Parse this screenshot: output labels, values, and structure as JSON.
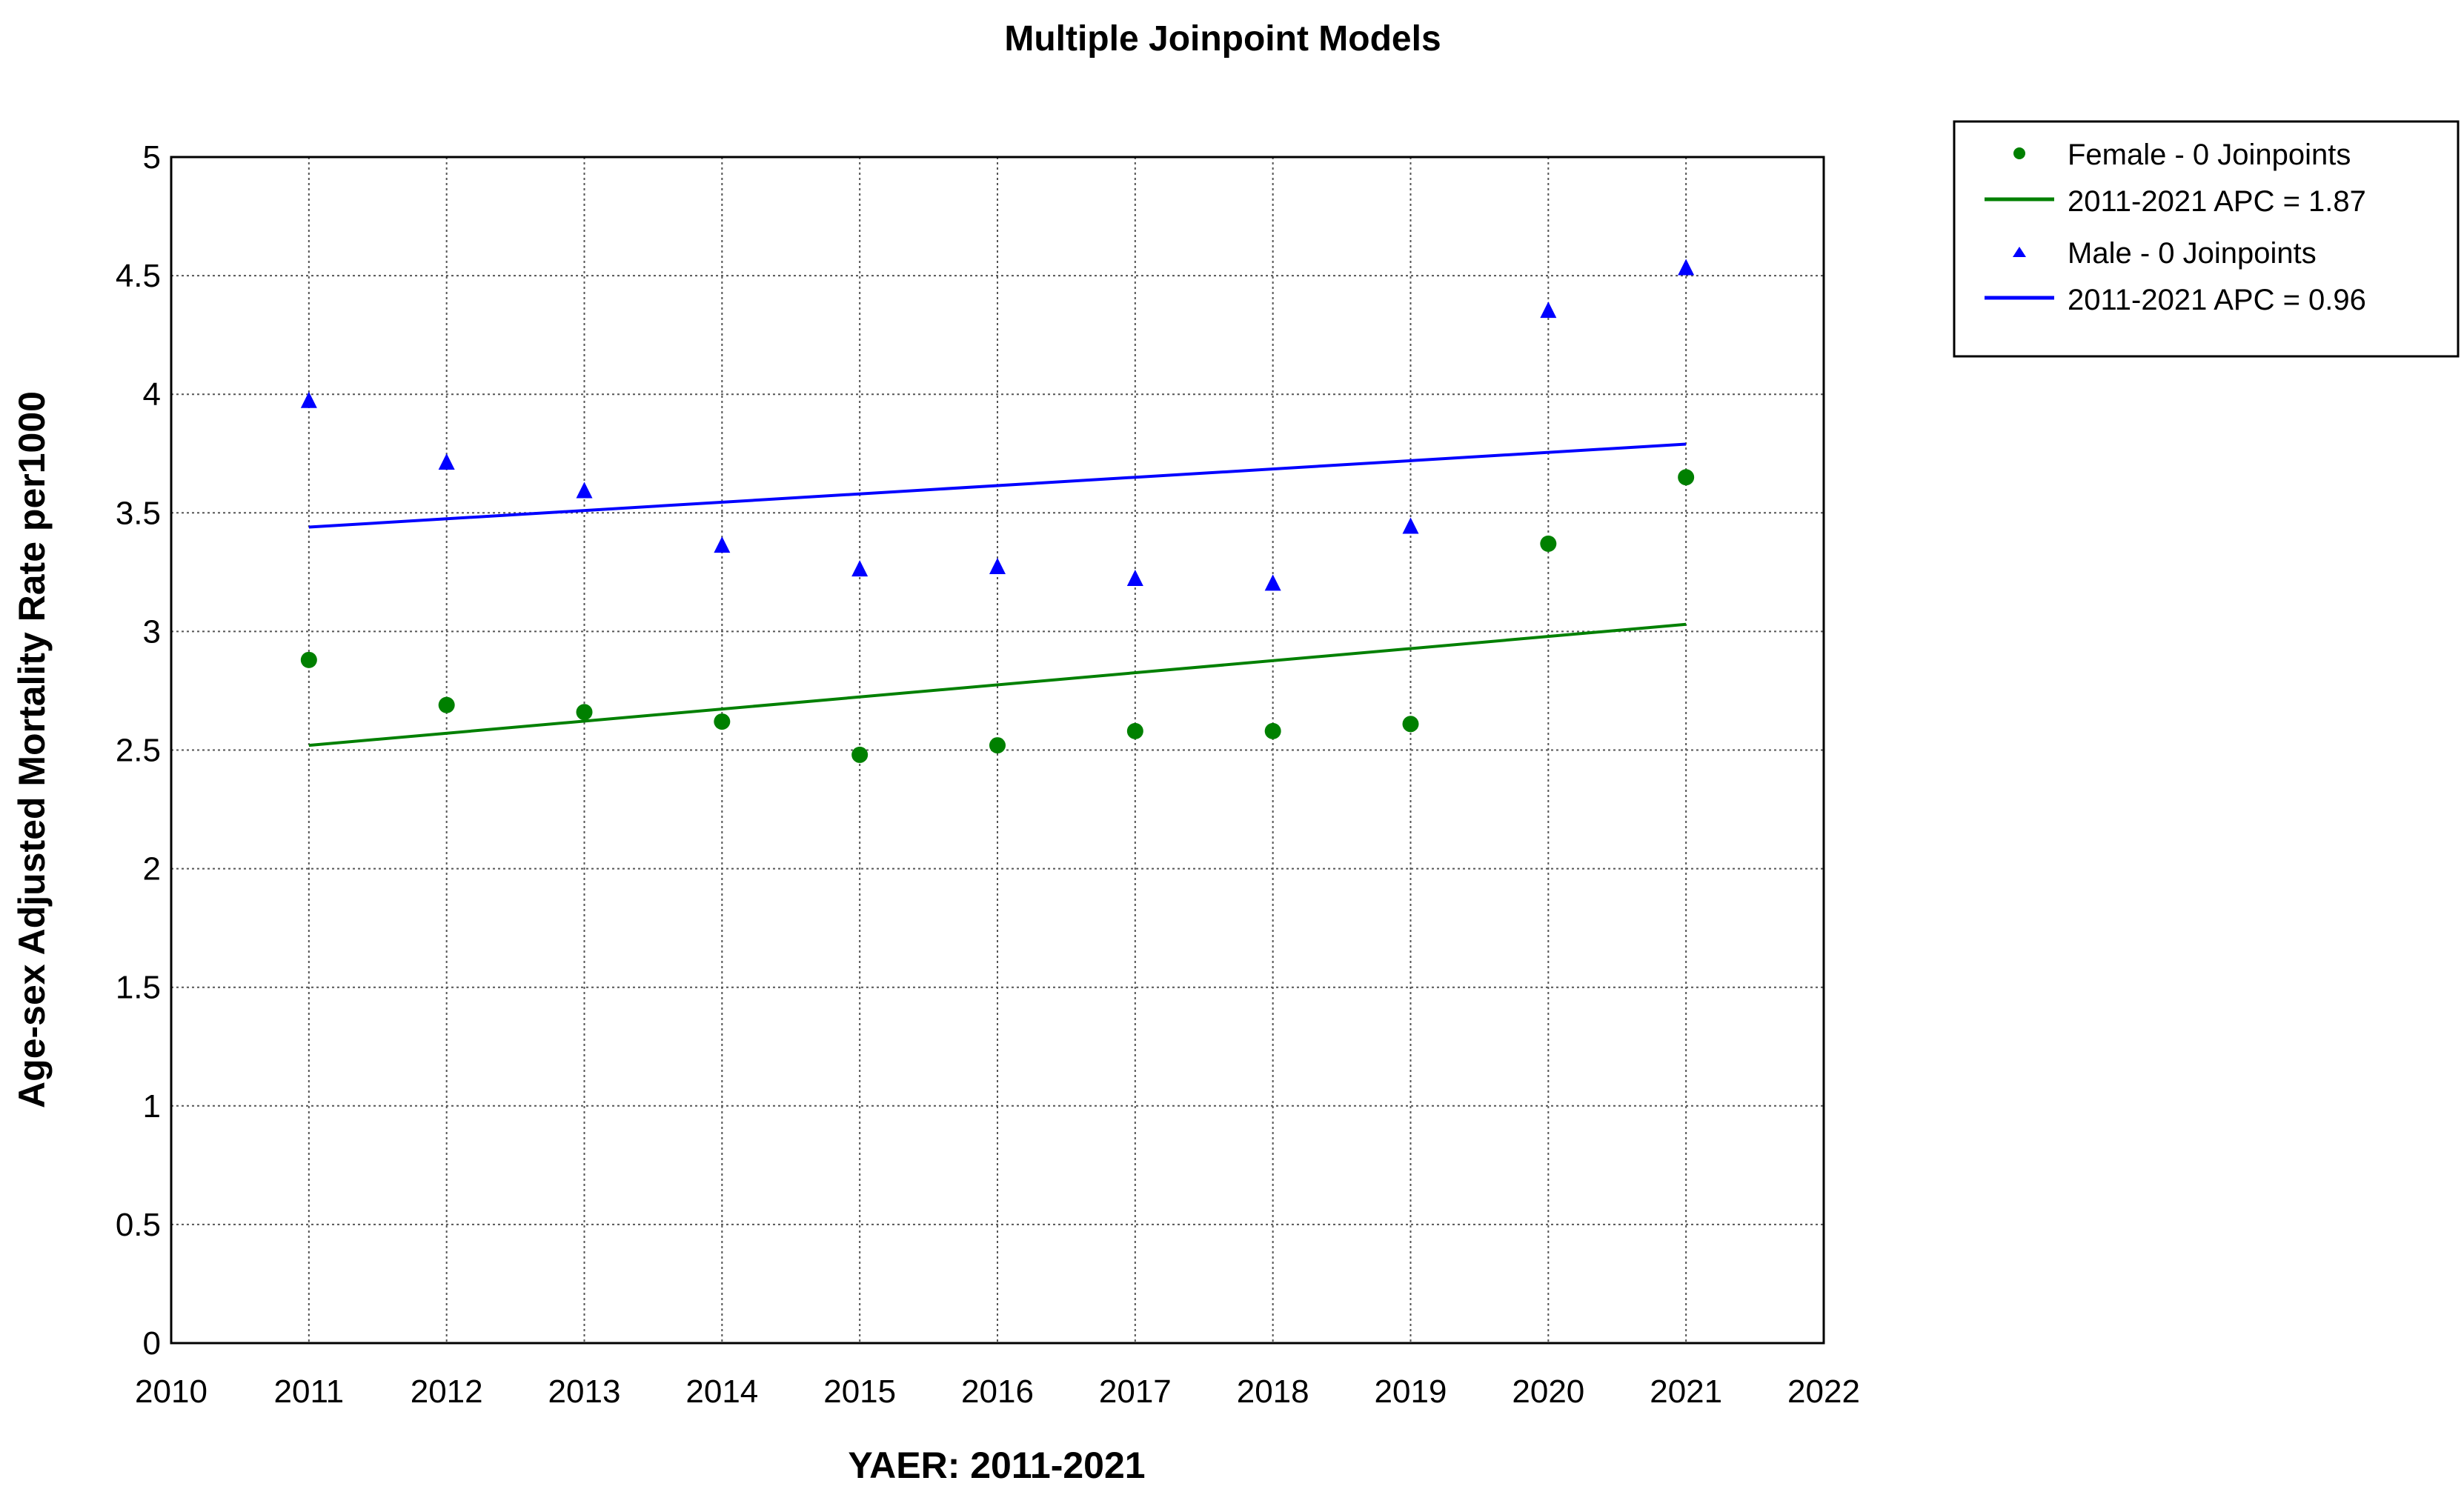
{
  "chart_data": {
    "type": "scatter",
    "title": "Multiple Joinpoint Models",
    "xlabel": "YAER: 2011-2021",
    "ylabel": "Age-sex Adjusted  Mortality Rate per1000",
    "xlim": [
      2010,
      2022
    ],
    "ylim": [
      0,
      5
    ],
    "x_ticks": [
      "2010",
      "2011",
      "2012",
      "2013",
      "2014",
      "2015",
      "2016",
      "2017",
      "2018",
      "2019",
      "2020",
      "2021",
      "2022"
    ],
    "y_ticks": [
      "0",
      "0.5",
      "1",
      "1.5",
      "2",
      "2.5",
      "3",
      "3.5",
      "4",
      "4.5",
      "5"
    ],
    "grid": true,
    "legend_position": "outside-top-right",
    "series": [
      {
        "name": "Female - 0 Joinpoints",
        "marker": "circle",
        "color": "#008000",
        "x": [
          2011,
          2012,
          2013,
          2014,
          2015,
          2016,
          2017,
          2018,
          2019,
          2020,
          2021
        ],
        "values": [
          2.88,
          2.69,
          2.66,
          2.62,
          2.48,
          2.52,
          2.58,
          2.58,
          2.61,
          3.37,
          3.65
        ],
        "fit_label": "2011-2021 APC  = 1.87",
        "fit": {
          "x": [
            2011,
            2021
          ],
          "y": [
            2.52,
            3.03
          ]
        }
      },
      {
        "name": "Male - 0 Joinpoints",
        "marker": "triangle",
        "color": "#0000ff",
        "x": [
          2011,
          2012,
          2013,
          2014,
          2015,
          2016,
          2017,
          2018,
          2019,
          2020,
          2021
        ],
        "values": [
          3.97,
          3.71,
          3.59,
          3.36,
          3.26,
          3.27,
          3.22,
          3.2,
          3.44,
          4.35,
          4.53
        ],
        "fit_label": "2011-2021 APC  = 0.96",
        "fit": {
          "x": [
            2011,
            2021
          ],
          "y": [
            3.44,
            3.79
          ]
        }
      }
    ]
  }
}
